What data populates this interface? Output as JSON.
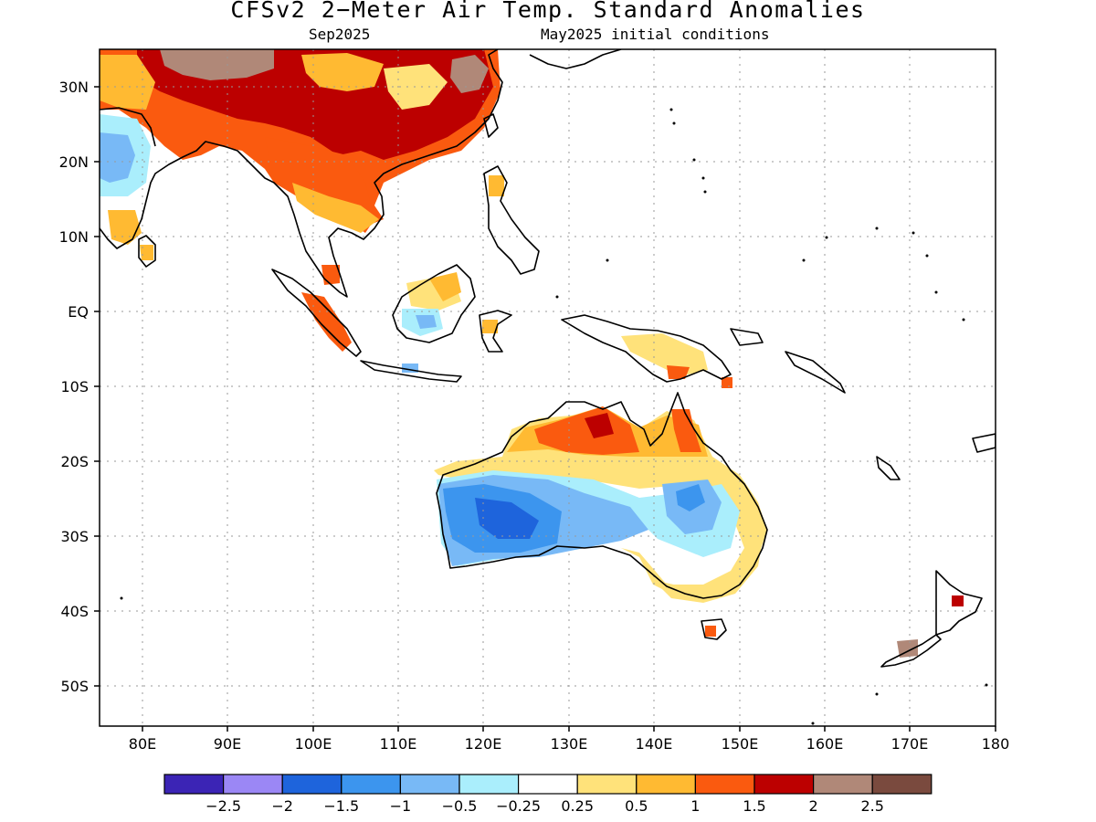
{
  "title": "CFSv2 2−Meter Air Temp. Standard Anomalies",
  "subtitle_left": "Sep2025",
  "subtitle_right": "May2025 initial conditions",
  "lat_labels": [
    "30N",
    "20N",
    "10N",
    "EQ",
    "10S",
    "20S",
    "30S",
    "40S",
    "50S"
  ],
  "lon_labels": [
    "80E",
    "90E",
    "100E",
    "110E",
    "120E",
    "130E",
    "140E",
    "150E",
    "160E",
    "170E",
    "180"
  ],
  "colorbar": {
    "colors": [
      "#3b24b5",
      "#9b87f5",
      "#1e64dc",
      "#3c95ee",
      "#78b9f6",
      "#aaeefc",
      "#ffffff",
      "#ffe27a",
      "#ffba32",
      "#fa5a0f",
      "#bc0000",
      "#b08878",
      "#7a4a3e"
    ],
    "labels": [
      "−2.5",
      "−2",
      "−1.5",
      "−1",
      "−0.5",
      "−0.25",
      "0.25",
      "0.5",
      "1",
      "1.5",
      "2",
      "2.5"
    ]
  }
}
